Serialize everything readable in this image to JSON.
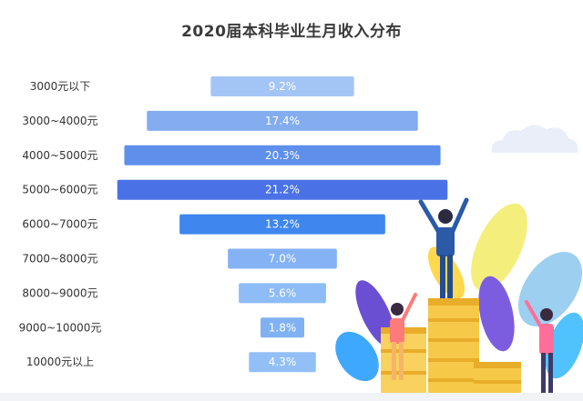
{
  "chart_data": {
    "type": "bar",
    "orientation": "horizontal-centered",
    "title": "2020届本科毕业生月收入分布",
    "categories": [
      "3000元以下",
      "3000~4000元",
      "4000~5000元",
      "5000~6000元",
      "6000~7000元",
      "7000~8000元",
      "8000~9000元",
      "9000~10000元",
      "10000元以上"
    ],
    "values": [
      9.2,
      17.4,
      20.3,
      21.2,
      13.2,
      7.0,
      5.6,
      1.8,
      4.3
    ],
    "value_labels": [
      "9.2%",
      "17.4%",
      "20.3%",
      "21.2%",
      "13.2%",
      "7.0%",
      "5.6%",
      "1.8%",
      "4.3%"
    ],
    "unit": "%",
    "colors": [
      "#a3c5f6",
      "#84adef",
      "#5d8feb",
      "#4a72e6",
      "#3f86ee",
      "#84b2f5",
      "#8dbcf6",
      "#80b2f3",
      "#92bff6"
    ]
  }
}
